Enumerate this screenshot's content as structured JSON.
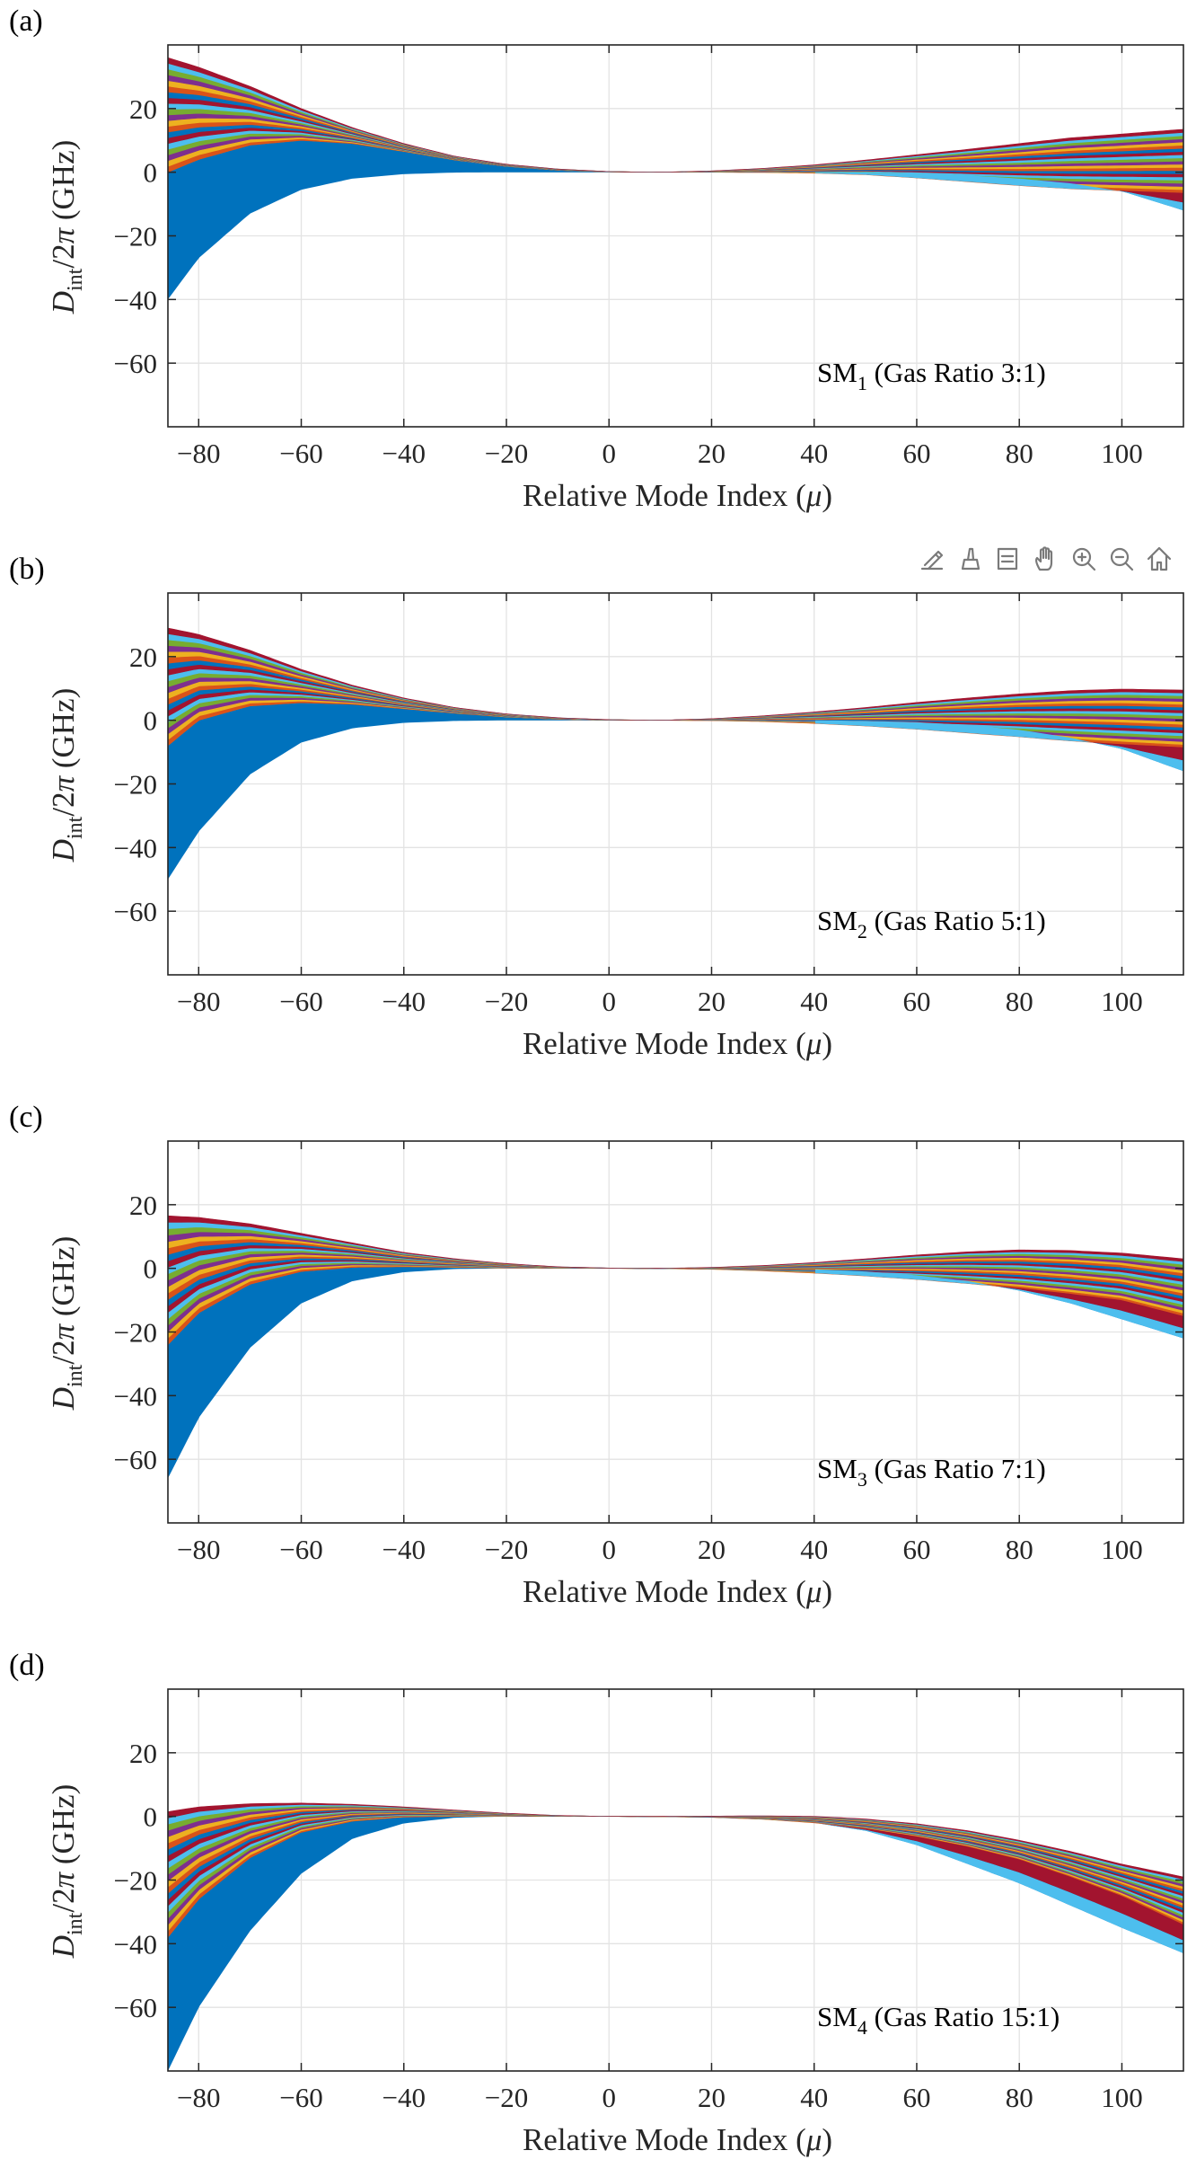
{
  "toolbar": {
    "icons": [
      "export-icon",
      "brush-icon",
      "datatip-icon",
      "pan-icon",
      "zoom-in-icon",
      "zoom-out-icon",
      "home-icon"
    ]
  },
  "chart_data": [
    {
      "panel_label": "(a)",
      "type": "area",
      "annotation": {
        "prefix": "SM",
        "subscript": "1",
        "text": " (Gas Ratio 3:1)"
      },
      "xlabel": {
        "text": "Relative Mode Index (",
        "symbol": "μ",
        "suffix": ")"
      },
      "ylabel": {
        "main": "D",
        "subscript": "int",
        "rest": "/2",
        "symbol": "π",
        "unit": " (GHz)"
      },
      "xlim": [
        -86,
        112
      ],
      "ylim": [
        -80,
        40
      ],
      "xticks": [
        -80,
        -60,
        -40,
        -20,
        0,
        20,
        40,
        60,
        80,
        100
      ],
      "yticks": [
        -60,
        -40,
        -20,
        0,
        20
      ],
      "grid": true,
      "series_palette": [
        "#0072BD",
        "#D95319",
        "#EDB120",
        "#7E2F8E",
        "#77AC30",
        "#4DBEEE",
        "#A2142F"
      ],
      "curve_count": 20,
      "envelope": {
        "x": [
          -86,
          -80,
          -70,
          -60,
          -50,
          -40,
          -30,
          -20,
          -10,
          0,
          10,
          20,
          30,
          40,
          50,
          60,
          70,
          80,
          90,
          100,
          112
        ],
        "upper": [
          36,
          33,
          27,
          20,
          14,
          9,
          5,
          2.5,
          1,
          0.2,
          0,
          0.4,
          1.2,
          2.3,
          3.8,
          5.5,
          7.2,
          9,
          10.8,
          12,
          13.5
        ],
        "lower": [
          -40,
          -27,
          -13,
          -5.5,
          -2,
          -0.6,
          -0.1,
          0,
          0,
          0,
          0,
          0,
          0,
          0,
          -0.1,
          -0.4,
          -1,
          -2,
          -3.5,
          -6,
          -12
        ],
        "upper_bottom": [
          0,
          4,
          8.5,
          10,
          9,
          6.5,
          3.8,
          1.8,
          0.6,
          0.1,
          0,
          0,
          -0.1,
          -0.3,
          -0.8,
          -1.8,
          -3,
          -4.2,
          -5.2,
          -5.8,
          -6.5
        ]
      }
    },
    {
      "panel_label": "(b)",
      "type": "area",
      "annotation": {
        "prefix": "SM",
        "subscript": "2",
        "text": " (Gas Ratio 5:1)"
      },
      "xlabel": {
        "text": "Relative Mode Index (",
        "symbol": "μ",
        "suffix": ")"
      },
      "ylabel": {
        "main": "D",
        "subscript": "int",
        "rest": "/2",
        "symbol": "π",
        "unit": " (GHz)"
      },
      "xlim": [
        -86,
        112
      ],
      "ylim": [
        -80,
        40
      ],
      "xticks": [
        -80,
        -60,
        -40,
        -20,
        0,
        20,
        40,
        60,
        80,
        100
      ],
      "yticks": [
        -60,
        -40,
        -20,
        0,
        20
      ],
      "grid": true,
      "series_palette": [
        "#0072BD",
        "#D95319",
        "#EDB120",
        "#7E2F8E",
        "#77AC30",
        "#4DBEEE",
        "#A2142F"
      ],
      "curve_count": 20,
      "envelope": {
        "x": [
          -86,
          -80,
          -70,
          -60,
          -50,
          -40,
          -30,
          -20,
          -10,
          0,
          10,
          20,
          30,
          40,
          50,
          60,
          70,
          80,
          90,
          100,
          112
        ],
        "upper": [
          29,
          27,
          22,
          16,
          11,
          7,
          4,
          2,
          0.8,
          0.2,
          0,
          0.5,
          1.4,
          2.6,
          4,
          5.6,
          7,
          8.3,
          9.3,
          9.8,
          9.5
        ],
        "lower": [
          -50,
          -35,
          -17,
          -7,
          -2.5,
          -0.8,
          -0.2,
          0,
          0,
          0,
          0,
          0,
          0,
          0,
          -0.2,
          -0.6,
          -1.5,
          -3,
          -5.5,
          -9,
          -16
        ],
        "upper_bottom": [
          -8,
          0,
          4.5,
          5.5,
          5,
          3.6,
          2.2,
          1,
          0.3,
          0,
          0,
          -0.1,
          -0.4,
          -1,
          -1.8,
          -2.8,
          -4,
          -5.2,
          -6.5,
          -7.5,
          -8.5
        ]
      }
    },
    {
      "panel_label": "(c)",
      "type": "area",
      "annotation": {
        "prefix": "SM",
        "subscript": "3",
        "text": " (Gas Ratio 7:1)"
      },
      "xlabel": {
        "text": "Relative Mode Index (",
        "symbol": "μ",
        "suffix": ")"
      },
      "ylabel": {
        "main": "D",
        "subscript": "int",
        "rest": "/2",
        "symbol": "π",
        "unit": " (GHz)"
      },
      "xlim": [
        -86,
        112
      ],
      "ylim": [
        -80,
        40
      ],
      "xticks": [
        -80,
        -60,
        -40,
        -20,
        0,
        20,
        40,
        60,
        80,
        100
      ],
      "yticks": [
        -60,
        -40,
        -20,
        0,
        20
      ],
      "grid": true,
      "series_palette": [
        "#0072BD",
        "#D95319",
        "#EDB120",
        "#7E2F8E",
        "#77AC30",
        "#4DBEEE",
        "#A2142F"
      ],
      "curve_count": 20,
      "envelope": {
        "x": [
          -86,
          -80,
          -70,
          -60,
          -50,
          -40,
          -30,
          -20,
          -10,
          0,
          10,
          20,
          30,
          40,
          50,
          60,
          70,
          80,
          90,
          100,
          112
        ],
        "upper": [
          16.5,
          16,
          14,
          11,
          8,
          5,
          3,
          1.5,
          0.5,
          0.1,
          0,
          0.3,
          0.9,
          1.8,
          3,
          4.2,
          5.2,
          5.8,
          5.6,
          4.8,
          3
        ],
        "lower": [
          -66,
          -47,
          -25,
          -11,
          -4,
          -1.2,
          -0.2,
          0,
          0,
          0,
          0,
          0,
          -0.1,
          -0.3,
          -1,
          -2.2,
          -4,
          -7,
          -11,
          -16,
          -22
        ],
        "upper_bottom": [
          -24,
          -14,
          -5,
          -1,
          0.3,
          0.5,
          0.3,
          0.1,
          0,
          0,
          -0.1,
          -0.3,
          -0.8,
          -1.5,
          -2.4,
          -3.5,
          -4.8,
          -6.2,
          -8,
          -10,
          -15
        ]
      }
    },
    {
      "panel_label": "(d)",
      "type": "area",
      "annotation": {
        "prefix": "SM",
        "subscript": "4",
        "text": " (Gas Ratio 15:1)"
      },
      "xlabel": {
        "text": "Relative Mode Index (",
        "symbol": "μ",
        "suffix": ")"
      },
      "ylabel": {
        "main": "D",
        "subscript": "int",
        "rest": "/2",
        "symbol": "π",
        "unit": " (GHz)"
      },
      "xlim": [
        -86,
        112
      ],
      "ylim": [
        -80,
        40
      ],
      "xticks": [
        -80,
        -60,
        -40,
        -20,
        0,
        20,
        40,
        60,
        80,
        100
      ],
      "yticks": [
        -60,
        -40,
        -20,
        0,
        20
      ],
      "grid": true,
      "series_palette": [
        "#0072BD",
        "#D95319",
        "#EDB120",
        "#7E2F8E",
        "#77AC30",
        "#4DBEEE",
        "#A2142F"
      ],
      "curve_count": 20,
      "envelope": {
        "x": [
          -86,
          -80,
          -70,
          -60,
          -50,
          -40,
          -30,
          -20,
          -10,
          0,
          10,
          20,
          30,
          40,
          50,
          60,
          70,
          80,
          90,
          100,
          112
        ],
        "upper": [
          1.5,
          3,
          4,
          4.2,
          3.8,
          3,
          2,
          1,
          0.3,
          0,
          0,
          0.1,
          0.2,
          0,
          -0.8,
          -2.3,
          -4.5,
          -7.5,
          -11,
          -15,
          -19
        ],
        "lower": [
          -80,
          -60,
          -36,
          -18,
          -7,
          -2.2,
          -0.4,
          0,
          0,
          0,
          0,
          -0.1,
          -0.6,
          -2,
          -4.5,
          -9,
          -15,
          -21,
          -28,
          -35,
          -43
        ],
        "upper_bottom": [
          -38,
          -26,
          -13,
          -5,
          -1.5,
          -0.2,
          0,
          0,
          0,
          0,
          -0.1,
          -0.3,
          -0.9,
          -2,
          -3.8,
          -6.3,
          -9.5,
          -13.5,
          -19,
          -25,
          -34
        ]
      }
    }
  ]
}
